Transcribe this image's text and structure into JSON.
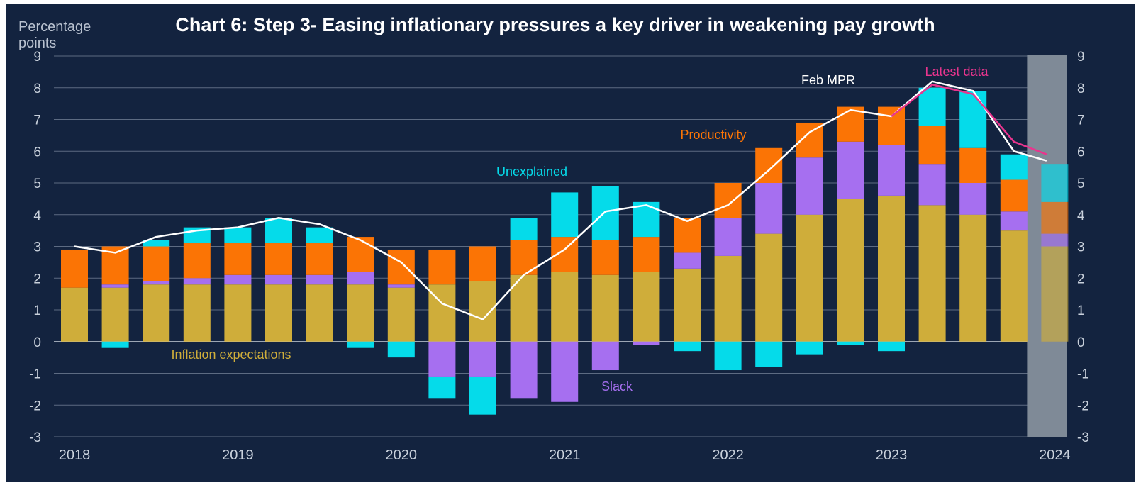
{
  "chart_data": {
    "type": "bar",
    "stacked": true,
    "title": "Chart 6: Step 3- Easing inflationary pressures a key driver in weakening pay growth",
    "ylabel": "Percentage points",
    "ylim": [
      -3,
      9
    ],
    "yticks": [
      "9",
      "8",
      "7",
      "6",
      "5",
      "4",
      "3",
      "2",
      "1",
      "0",
      "-1",
      "-2",
      "-3"
    ],
    "ytick_values": [
      9,
      8,
      7,
      6,
      5,
      4,
      3,
      2,
      1,
      0,
      -1,
      -2,
      -3
    ],
    "x_axis_labels": [
      {
        "label": "2018",
        "at": 0
      },
      {
        "label": "2019",
        "at": 4
      },
      {
        "label": "2020",
        "at": 8
      },
      {
        "label": "2021",
        "at": 12
      },
      {
        "label": "2022",
        "at": 16
      },
      {
        "label": "2023",
        "at": 20
      },
      {
        "label": "2024",
        "at": 24
      }
    ],
    "categories": [
      "2018 Q1",
      "2018 Q2",
      "2018 Q3",
      "2018 Q4",
      "2019 Q1",
      "2019 Q2",
      "2019 Q3",
      "2019 Q4",
      "2020 Q1",
      "2020 Q2",
      "2020 Q3",
      "2020 Q4",
      "2021 Q1",
      "2021 Q2",
      "2021 Q3",
      "2021 Q4",
      "2022 Q1",
      "2022 Q2",
      "2022 Q3",
      "2022 Q4",
      "2023 Q1",
      "2023 Q2",
      "2023 Q3",
      "2023 Q4",
      "2024 Q1"
    ],
    "series": [
      {
        "name": "Inflation expectations",
        "color": "#cfad3a",
        "values": [
          1.7,
          1.7,
          1.8,
          1.8,
          1.8,
          1.8,
          1.8,
          1.8,
          1.7,
          1.8,
          1.9,
          2.1,
          2.2,
          2.1,
          2.2,
          2.3,
          2.7,
          3.4,
          4.0,
          4.5,
          4.6,
          4.3,
          4.0,
          3.5,
          3.0
        ]
      },
      {
        "name": "Slack",
        "color": "#a66ff0",
        "values": [
          0,
          0.1,
          0.1,
          0.2,
          0.3,
          0.3,
          0.3,
          0.4,
          0.1,
          -1.1,
          -1.1,
          -1.8,
          -1.9,
          -0.9,
          -0.1,
          0.5,
          1.2,
          1.6,
          1.8,
          1.8,
          1.6,
          1.3,
          1.0,
          0.6,
          0.4
        ]
      },
      {
        "name": "Productivity",
        "color": "#fb7405",
        "values": [
          1.2,
          1.2,
          1.1,
          1.1,
          1.0,
          1.0,
          1.0,
          1.1,
          1.1,
          1.1,
          1.1,
          1.1,
          1.1,
          1.1,
          1.1,
          1.1,
          1.1,
          1.1,
          1.1,
          1.1,
          1.2,
          1.2,
          1.1,
          1.0,
          1.0
        ]
      },
      {
        "name": "Unexplained",
        "color": "#05dbea",
        "values": [
          0,
          -0.2,
          0.2,
          0.5,
          0.5,
          0.8,
          0.5,
          -0.2,
          -0.5,
          -0.7,
          -1.2,
          0.7,
          1.4,
          1.7,
          1.1,
          -0.3,
          -0.9,
          -0.8,
          -0.4,
          -0.1,
          -0.3,
          1.2,
          1.8,
          0.8,
          1.2
        ]
      }
    ],
    "lines": [
      {
        "name": "Feb MPR",
        "color": "#ffffff",
        "x": [
          0,
          1,
          2,
          3,
          4,
          5,
          6,
          7,
          8,
          9,
          10,
          11,
          12,
          13,
          14,
          15,
          16,
          17,
          18,
          19,
          20,
          21,
          22,
          23,
          23.8
        ],
        "values": [
          3.0,
          2.8,
          3.3,
          3.5,
          3.6,
          3.9,
          3.7,
          3.2,
          2.5,
          1.2,
          0.7,
          2.1,
          2.9,
          4.1,
          4.3,
          3.8,
          4.3,
          5.4,
          6.6,
          7.3,
          7.1,
          8.2,
          7.9,
          6.0,
          5.7
        ]
      },
      {
        "name": "Latest data",
        "color": "#e8358e",
        "x": [
          20,
          21,
          22,
          23,
          23.8
        ],
        "values": [
          7.1,
          8.1,
          7.8,
          6.3,
          5.9
        ]
      }
    ],
    "highlight_region": {
      "from_index": 24,
      "color": "#7f8a97"
    },
    "annotations": [
      {
        "text": "Inflation expectations",
        "color": "#cfad3a"
      },
      {
        "text": "Slack",
        "color": "#a66ff0"
      },
      {
        "text": "Productivity",
        "color": "#fb7405"
      },
      {
        "text": "Unexplained",
        "color": "#05dbea"
      },
      {
        "text": "Feb MPR",
        "color": "#ffffff"
      },
      {
        "text": "Latest data",
        "color": "#e8358e"
      }
    ],
    "grid": true,
    "legend": "inline annotations"
  }
}
